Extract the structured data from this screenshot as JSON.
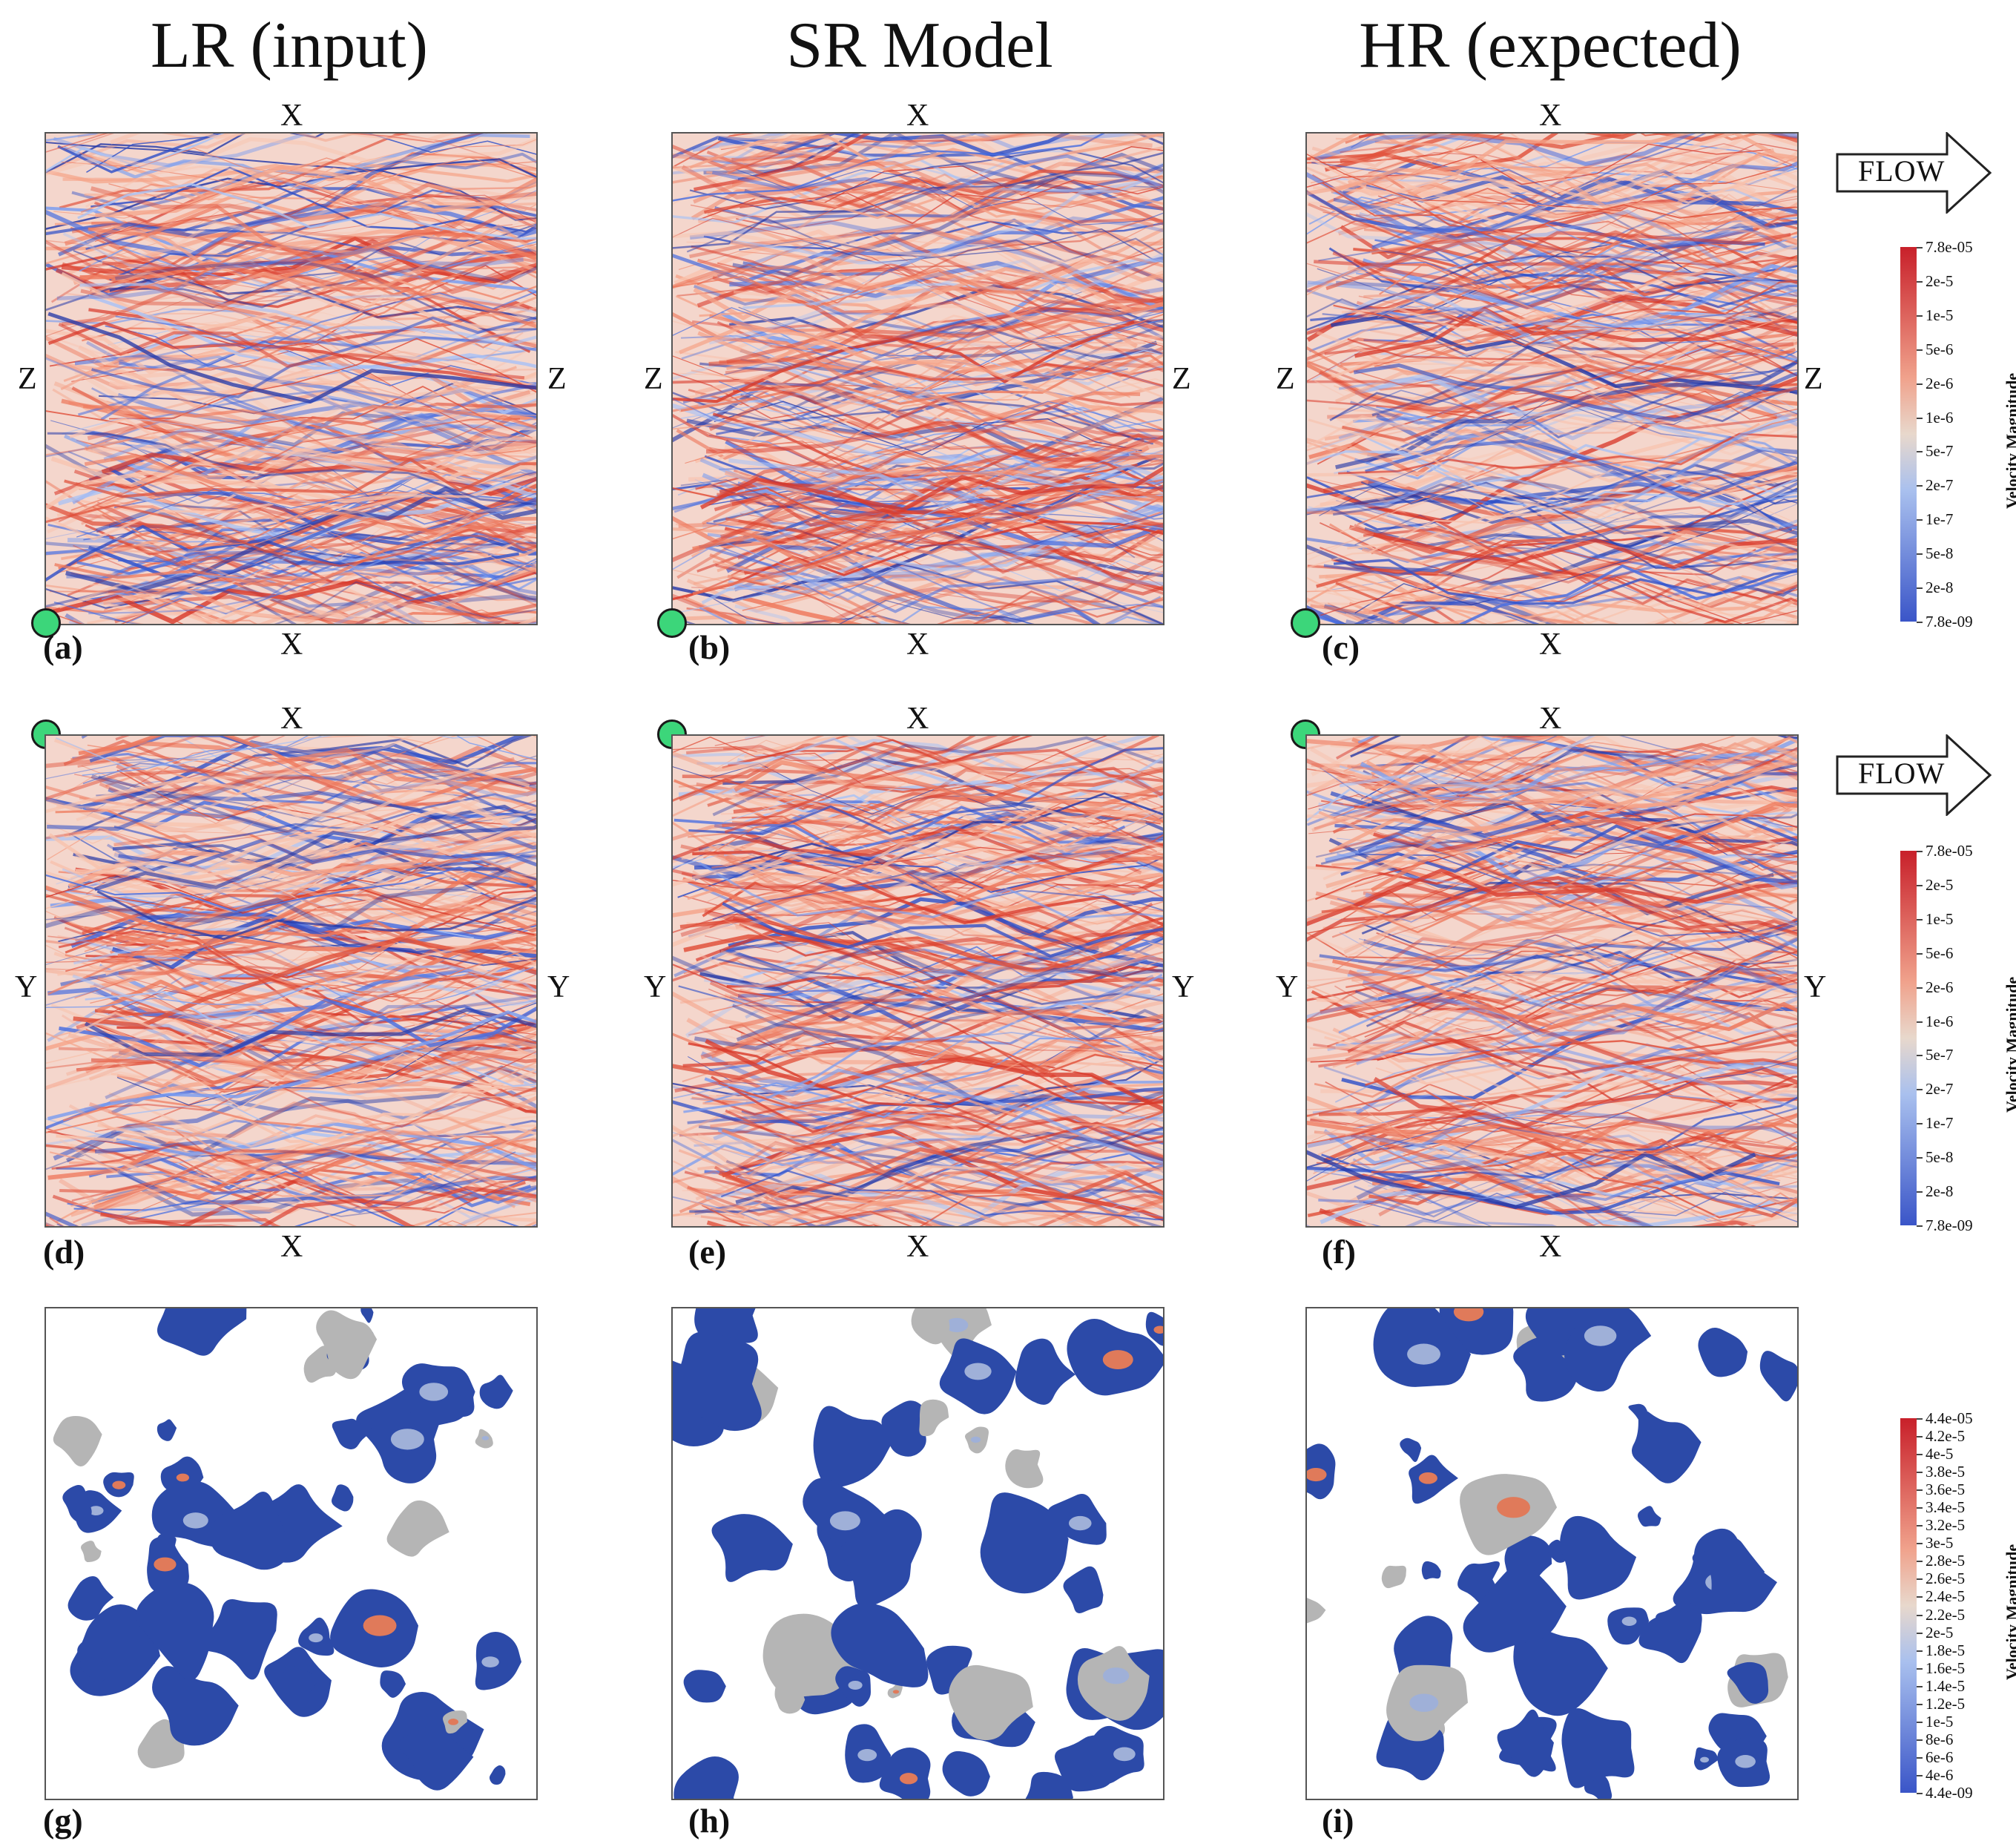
{
  "columns": [
    "LR (input)",
    "SR Model",
    "HR (expected)"
  ],
  "rows": [
    {
      "top": "X",
      "bottom": "X",
      "left": "Z",
      "right": "Z",
      "labels": [
        "(a)",
        "(b)",
        "(c)"
      ]
    },
    {
      "top": "X",
      "bottom": "X",
      "left": "Y",
      "right": "Y",
      "labels": [
        "(d)",
        "(e)",
        "(f)"
      ]
    },
    {
      "labels": [
        "(g)",
        "(h)",
        "(i)"
      ]
    }
  ],
  "flow_label": "FLOW",
  "colorbars": [
    {
      "title": "Velocity Magnitude",
      "ticks": [
        "7.8e-05",
        "2e-5",
        "1e-5",
        "5e-6",
        "2e-6",
        "1e-6",
        "5e-7",
        "2e-7",
        "1e-7",
        "5e-8",
        "2e-8",
        "7.8e-09"
      ]
    },
    {
      "title": "Velocity Magnitude",
      "ticks": [
        "7.8e-05",
        "2e-5",
        "1e-5",
        "5e-6",
        "2e-6",
        "1e-6",
        "5e-7",
        "2e-7",
        "1e-7",
        "5e-8",
        "2e-8",
        "7.8e-09"
      ]
    },
    {
      "title": "Velocity Magnitude",
      "ticks": [
        "4.4e-05",
        "4.2e-5",
        "4e-5",
        "3.8e-5",
        "3.6e-5",
        "3.4e-5",
        "3.2e-5",
        "3e-5",
        "2.8e-5",
        "2.6e-5",
        "2.4e-5",
        "2.2e-5",
        "2e-5",
        "1.8e-5",
        "1.6e-5",
        "1.4e-5",
        "1.2e-5",
        "1e-5",
        "8e-6",
        "6e-6",
        "4e-6",
        "4.4e-09"
      ]
    }
  ],
  "colors": {
    "high": "#c8202a",
    "mid": "#e8d8cc",
    "low": "#3a55c8",
    "marker": "#3cd67a"
  }
}
